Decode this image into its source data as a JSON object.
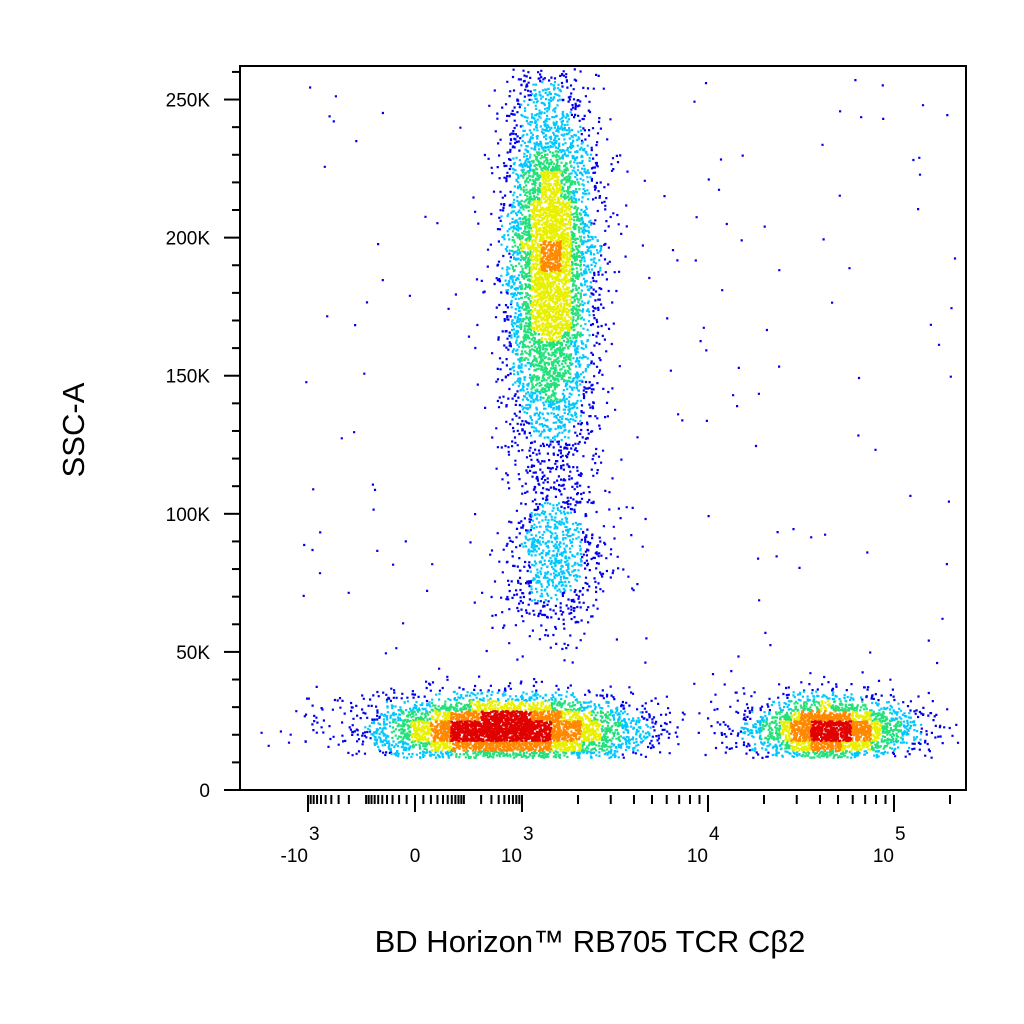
{
  "chart_data": {
    "type": "scatter",
    "subtype": "flow-cytometry-density-dot-plot",
    "xlabel": "BD Horizon™ RB705 TCR Cβ2",
    "ylabel": "SSC-A",
    "x_scale": "biexponential",
    "x_ticks": [
      {
        "value": -1000,
        "base": "-10",
        "exp": "3"
      },
      {
        "value": 0,
        "base": "0",
        "exp": ""
      },
      {
        "value": 1000,
        "base": "10",
        "exp": "3"
      },
      {
        "value": 10000,
        "base": "10",
        "exp": "4"
      },
      {
        "value": 100000,
        "base": "10",
        "exp": "5"
      }
    ],
    "y_scale": "linear",
    "ylim": [
      0,
      262144
    ],
    "y_ticks": [
      {
        "value": 0,
        "label": "0"
      },
      {
        "value": 50000,
        "label": "50K"
      },
      {
        "value": 100000,
        "label": "100K"
      },
      {
        "value": 150000,
        "label": "150K"
      },
      {
        "value": 200000,
        "label": "200K"
      },
      {
        "value": 250000,
        "label": "250K"
      }
    ],
    "grid": false,
    "legend": "none",
    "density_colors": [
      "#0000ee",
      "#00c8ff",
      "#22e07a",
      "#e8f000",
      "#ff8800",
      "#e00000"
    ],
    "populations": [
      {
        "name": "",
        "x_center": 1400,
        "x_spread": 0.12,
        "y_center": 190000,
        "y_spread": 35000,
        "events": 5200
      },
      {
        "name": "",
        "x_center": 1500,
        "x_spread": 0.14,
        "y_center": 85000,
        "y_spread": 14000,
        "events": 800
      },
      {
        "name": "",
        "x_center": 500,
        "x_spread": 0.35,
        "y_center": 22000,
        "y_spread": 6000,
        "events": 5000
      },
      {
        "name": "",
        "x_center": 45000,
        "x_spread": 0.22,
        "y_center": 22000,
        "y_spread": 6000,
        "events": 2600
      }
    ]
  }
}
